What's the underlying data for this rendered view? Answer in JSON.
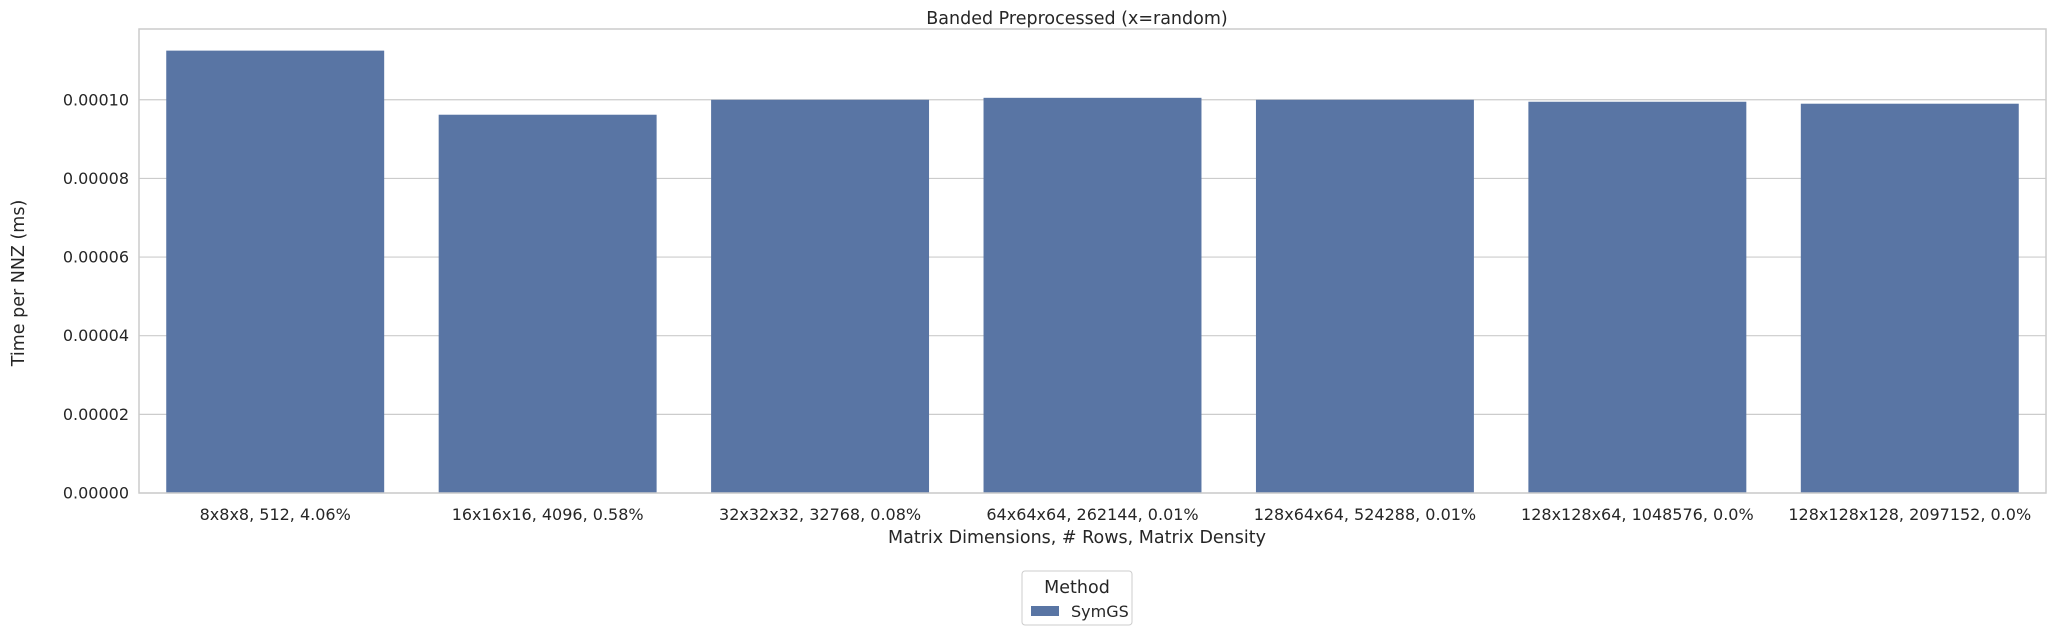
{
  "chart_data": {
    "type": "bar",
    "title": "Banded Preprocessed (x=random)",
    "xlabel": "Matrix Dimensions, # Rows, Matrix Density",
    "ylabel": "Time per NNZ (ms)",
    "ylim": [
      0,
      0.000118
    ],
    "yticks": [
      "0.00000",
      "0.00002",
      "0.00004",
      "0.00006",
      "0.00008",
      "0.00010"
    ],
    "ytick_values": [
      0,
      2e-05,
      4e-05,
      6e-05,
      8e-05,
      0.0001
    ],
    "grid": true,
    "categories": [
      "8x8x8, 512, 4.06%",
      "16x16x16, 4096, 0.58%",
      "32x32x32, 32768, 0.08%",
      "64x64x64, 262144, 0.01%",
      "128x64x64, 524288, 0.01%",
      "128x128x64, 1048576, 0.0%",
      "128x128x128, 2097152, 0.0%"
    ],
    "series": [
      {
        "name": "SymGS",
        "values": [
          0.0001125,
          9.62e-05,
          0.0001,
          0.0001005,
          0.0001,
          9.95e-05,
          9.9e-05
        ],
        "color": "#5975a4"
      }
    ],
    "legend": {
      "title": "Method",
      "placement": "bottom-center"
    }
  }
}
